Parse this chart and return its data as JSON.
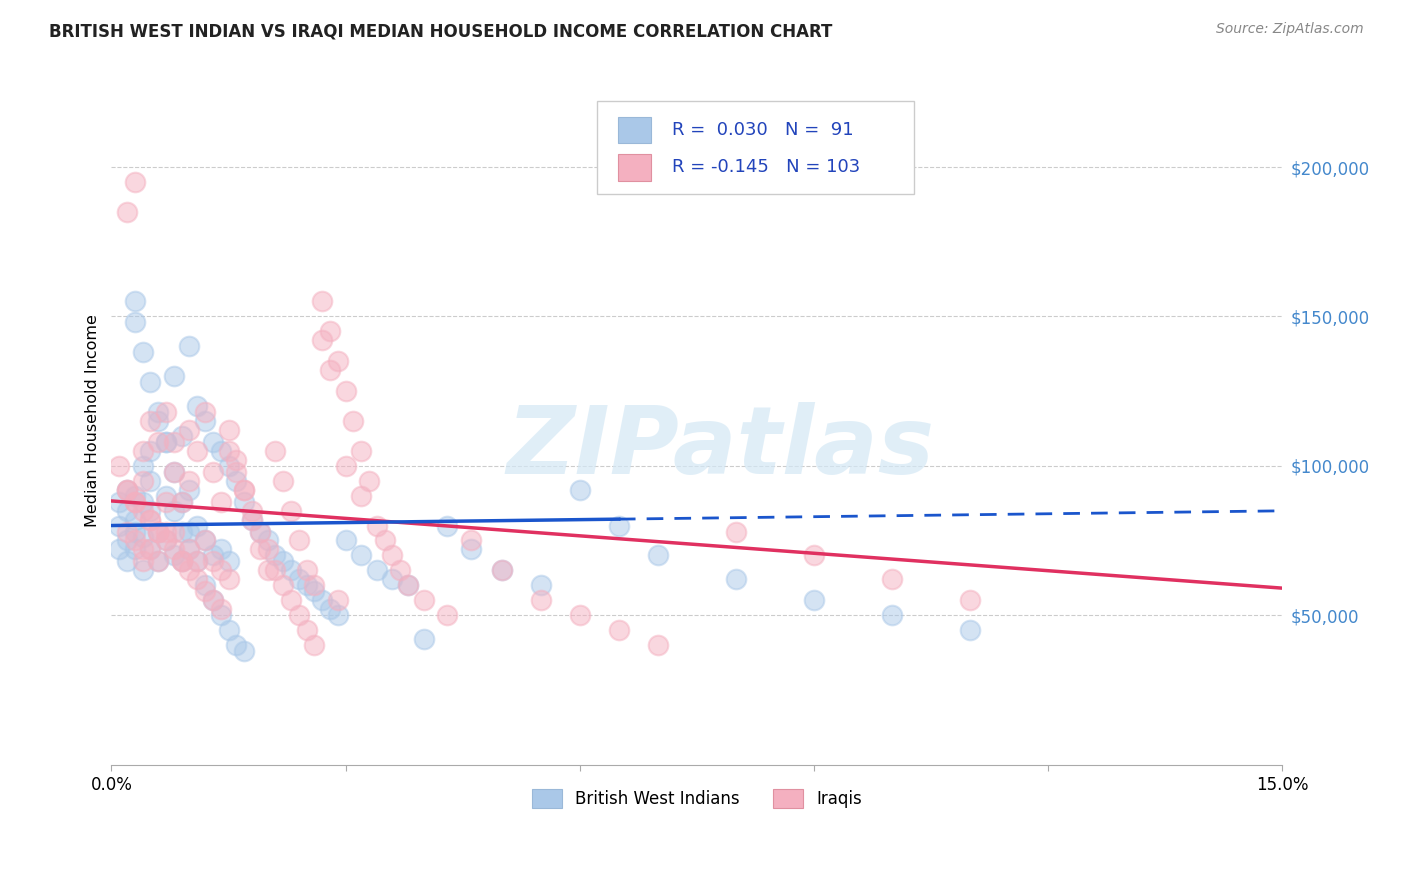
{
  "title": "BRITISH WEST INDIAN VS IRAQI MEDIAN HOUSEHOLD INCOME CORRELATION CHART",
  "source": "Source: ZipAtlas.com",
  "ylabel": "Median Household Income",
  "xlim": [
    0.0,
    0.15
  ],
  "ylim": [
    0,
    230000
  ],
  "ytick_positions": [
    50000,
    100000,
    150000,
    200000
  ],
  "ytick_labels": [
    "$50,000",
    "$100,000",
    "$150,000",
    "$200,000"
  ],
  "xtick_positions": [
    0.0,
    0.03,
    0.06,
    0.09,
    0.12,
    0.15
  ],
  "xtick_labels": [
    "0.0%",
    "",
    "",
    "",
    "",
    "15.0%"
  ],
  "blue_R": 0.03,
  "blue_N": 91,
  "pink_R": -0.145,
  "pink_N": 103,
  "blue_dot_color": "#aac8e8",
  "pink_dot_color": "#f4b0c0",
  "blue_line_color": "#1a55cc",
  "pink_line_color": "#e03060",
  "label_blue": "British West Indians",
  "label_pink": "Iraqis",
  "watermark": "ZIPatlas",
  "legend_text_color": "#2244bb",
  "ytick_color": "#4488cc",
  "blue_x": [
    0.001,
    0.001,
    0.001,
    0.002,
    0.002,
    0.002,
    0.002,
    0.003,
    0.003,
    0.003,
    0.003,
    0.003,
    0.004,
    0.004,
    0.004,
    0.004,
    0.005,
    0.005,
    0.005,
    0.005,
    0.006,
    0.006,
    0.006,
    0.007,
    0.007,
    0.007,
    0.008,
    0.008,
    0.008,
    0.009,
    0.009,
    0.009,
    0.01,
    0.01,
    0.01,
    0.011,
    0.011,
    0.012,
    0.012,
    0.013,
    0.013,
    0.014,
    0.014,
    0.015,
    0.015,
    0.016,
    0.017,
    0.018,
    0.019,
    0.02,
    0.021,
    0.022,
    0.023,
    0.024,
    0.025,
    0.026,
    0.027,
    0.028,
    0.029,
    0.03,
    0.032,
    0.034,
    0.036,
    0.038,
    0.04,
    0.043,
    0.046,
    0.05,
    0.055,
    0.06,
    0.065,
    0.07,
    0.08,
    0.09,
    0.1,
    0.11,
    0.003,
    0.004,
    0.005,
    0.006,
    0.007,
    0.008,
    0.009,
    0.01,
    0.011,
    0.012,
    0.013,
    0.014,
    0.015,
    0.016,
    0.017
  ],
  "blue_y": [
    80000,
    72000,
    88000,
    75000,
    85000,
    68000,
    92000,
    78000,
    90000,
    72000,
    155000,
    82000,
    76000,
    100000,
    65000,
    88000,
    105000,
    72000,
    85000,
    95000,
    115000,
    78000,
    68000,
    108000,
    90000,
    75000,
    130000,
    85000,
    70000,
    110000,
    78000,
    68000,
    140000,
    92000,
    72000,
    120000,
    80000,
    115000,
    75000,
    108000,
    70000,
    105000,
    72000,
    100000,
    68000,
    95000,
    88000,
    82000,
    78000,
    75000,
    70000,
    68000,
    65000,
    62000,
    60000,
    58000,
    55000,
    52000,
    50000,
    75000,
    70000,
    65000,
    62000,
    60000,
    42000,
    80000,
    72000,
    65000,
    60000,
    92000,
    80000,
    70000,
    62000,
    55000,
    50000,
    45000,
    148000,
    138000,
    128000,
    118000,
    108000,
    98000,
    88000,
    78000,
    68000,
    60000,
    55000,
    50000,
    45000,
    40000,
    38000
  ],
  "pink_x": [
    0.001,
    0.002,
    0.002,
    0.002,
    0.003,
    0.003,
    0.003,
    0.004,
    0.004,
    0.004,
    0.004,
    0.005,
    0.005,
    0.005,
    0.006,
    0.006,
    0.006,
    0.007,
    0.007,
    0.007,
    0.008,
    0.008,
    0.008,
    0.009,
    0.009,
    0.01,
    0.01,
    0.01,
    0.011,
    0.011,
    0.012,
    0.012,
    0.013,
    0.013,
    0.014,
    0.014,
    0.015,
    0.015,
    0.016,
    0.017,
    0.018,
    0.019,
    0.02,
    0.021,
    0.022,
    0.023,
    0.024,
    0.025,
    0.026,
    0.027,
    0.028,
    0.029,
    0.03,
    0.032,
    0.034,
    0.036,
    0.038,
    0.04,
    0.043,
    0.046,
    0.05,
    0.055,
    0.06,
    0.065,
    0.07,
    0.08,
    0.09,
    0.1,
    0.11,
    0.002,
    0.003,
    0.004,
    0.005,
    0.006,
    0.007,
    0.008,
    0.009,
    0.01,
    0.011,
    0.012,
    0.013,
    0.014,
    0.015,
    0.016,
    0.017,
    0.018,
    0.019,
    0.02,
    0.021,
    0.022,
    0.023,
    0.024,
    0.025,
    0.026,
    0.027,
    0.028,
    0.029,
    0.03,
    0.031,
    0.032,
    0.033,
    0.035,
    0.037
  ],
  "pink_y": [
    100000,
    92000,
    185000,
    78000,
    88000,
    195000,
    75000,
    105000,
    95000,
    72000,
    68000,
    115000,
    82000,
    72000,
    108000,
    78000,
    68000,
    88000,
    78000,
    118000,
    108000,
    98000,
    78000,
    88000,
    68000,
    112000,
    95000,
    72000,
    105000,
    68000,
    118000,
    75000,
    98000,
    68000,
    88000,
    65000,
    112000,
    62000,
    102000,
    92000,
    82000,
    72000,
    65000,
    105000,
    95000,
    85000,
    75000,
    65000,
    60000,
    142000,
    132000,
    55000,
    100000,
    90000,
    80000,
    70000,
    60000,
    55000,
    50000,
    75000,
    65000,
    55000,
    50000,
    45000,
    40000,
    78000,
    70000,
    62000,
    55000,
    92000,
    88000,
    85000,
    82000,
    78000,
    75000,
    72000,
    68000,
    65000,
    62000,
    58000,
    55000,
    52000,
    105000,
    98000,
    92000,
    85000,
    78000,
    72000,
    65000,
    60000,
    55000,
    50000,
    45000,
    40000,
    155000,
    145000,
    135000,
    125000,
    115000,
    105000,
    95000,
    75000,
    65000
  ]
}
